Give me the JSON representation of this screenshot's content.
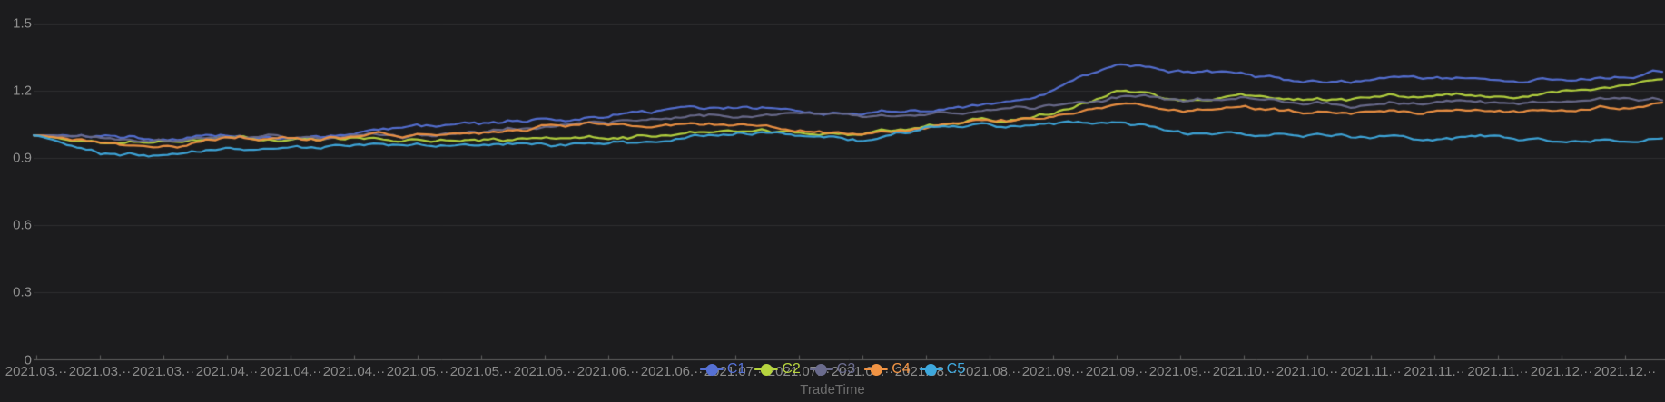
{
  "chart_data": {
    "type": "line",
    "title": "",
    "xlabel": "TradeTime",
    "ylabel": "",
    "ylim": [
      0,
      1.5
    ],
    "grid": true,
    "legend_position": "bottom-center",
    "background_color": "#1c1c1e",
    "axis_line_color": "#606060",
    "grid_line_color": "rgba(255,255,255,0.08)",
    "y_ticks": [
      0,
      0.3,
      0.6,
      0.9,
      1.2,
      1.5
    ],
    "y_tick_labels": [
      "0",
      "0.3",
      "0.6",
      "0.9",
      "1.2",
      "1.5"
    ],
    "x_tick_labels": [
      "2021.03.··",
      "2021.03.··",
      "2021.03.··",
      "2021.04.··",
      "2021.04.··",
      "2021.04.··",
      "2021.05.··",
      "2021.05.··",
      "2021.06.··",
      "2021.06.··",
      "2021.06.··",
      "2021.07.··",
      "2021.07.··",
      "2021.07.··",
      "2021.08.··",
      "2021.08.··",
      "2021.09.··",
      "2021.09.··",
      "2021.09.··",
      "2021.10.··",
      "2021.10.··",
      "2021.11.··",
      "2021.11.··",
      "2021.11.··",
      "2021.12.··",
      "2021.12.··"
    ],
    "series_note": "values_at_ticks_plus_end: 26 values sampled at each x tick, plus a 27th value at the right edge of the plot",
    "series": [
      {
        "name": "C1",
        "color": "#5570d4",
        "values_at_ticks_plus_end": [
          1.0,
          0.99,
          0.985,
          1.0,
          1.005,
          1.01,
          1.035,
          1.05,
          1.08,
          1.095,
          1.11,
          1.12,
          1.115,
          1.09,
          1.105,
          1.13,
          1.2,
          1.31,
          1.285,
          1.27,
          1.235,
          1.24,
          1.26,
          1.24,
          1.25,
          1.27,
          1.285
        ]
      },
      {
        "name": "C2",
        "color": "#b6d43f",
        "values_at_ticks_plus_end": [
          1.0,
          0.97,
          0.975,
          0.98,
          0.99,
          0.985,
          0.975,
          0.98,
          0.995,
          1.0,
          1.005,
          1.01,
          1.02,
          1.005,
          1.04,
          1.06,
          1.09,
          1.19,
          1.15,
          1.16,
          1.16,
          1.17,
          1.18,
          1.17,
          1.18,
          1.21,
          1.24
        ]
      },
      {
        "name": "C3",
        "color": "#6a6b8d",
        "values_at_ticks_plus_end": [
          1.0,
          0.985,
          0.98,
          0.99,
          0.995,
          1.0,
          0.995,
          1.01,
          1.04,
          1.06,
          1.07,
          1.085,
          1.1,
          1.075,
          1.09,
          1.1,
          1.13,
          1.175,
          1.15,
          1.16,
          1.14,
          1.135,
          1.15,
          1.14,
          1.14,
          1.155,
          1.16
        ]
      },
      {
        "name": "C4",
        "color": "#f09344",
        "values_at_ticks_plus_end": [
          1.0,
          0.97,
          0.96,
          0.98,
          1.0,
          1.0,
          1.005,
          1.015,
          1.05,
          1.065,
          1.04,
          1.03,
          1.02,
          0.995,
          1.03,
          1.045,
          1.07,
          1.145,
          1.11,
          1.12,
          1.11,
          1.1,
          1.11,
          1.1,
          1.11,
          1.12,
          1.13
        ]
      },
      {
        "name": "C5",
        "color": "#3ea8dd",
        "values_at_ticks_plus_end": [
          1.0,
          0.92,
          0.915,
          0.93,
          0.94,
          0.95,
          0.94,
          0.955,
          0.96,
          0.97,
          0.975,
          1.0,
          1.01,
          0.97,
          1.035,
          1.04,
          1.055,
          1.065,
          1.01,
          1.0,
          1.0,
          0.99,
          0.98,
          1.0,
          0.965,
          0.975,
          0.99
        ]
      }
    ]
  }
}
